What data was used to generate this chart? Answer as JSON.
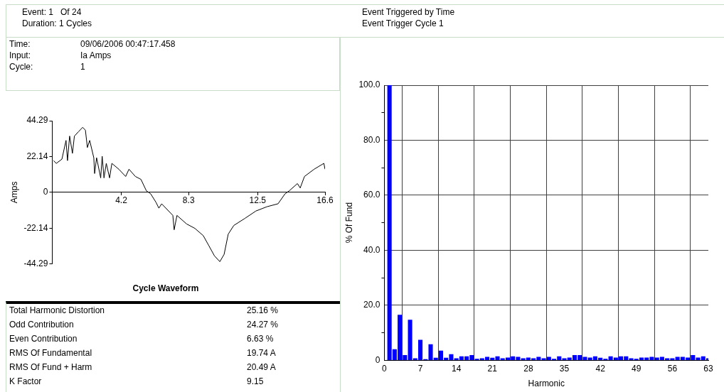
{
  "chart_data": [
    {
      "type": "other",
      "annotations": [
        "Event: 1   Of 24",
        "Duration: 1 Cycles",
        "Event Triggered by Time",
        "Event Trigger Cycle 1",
        "Time:",
        "09/06/2006 00:47:17.458",
        "Input:",
        "Ia Amps",
        "Cycle:",
        "1"
      ]
    },
    {
      "type": "line",
      "title": "Cycle Waveform",
      "ylabel": "Amps",
      "xlim": [
        0,
        16.6
      ],
      "xticks": [
        4.2,
        8.3,
        12.5,
        16.6
      ],
      "ylim": [
        -44.29,
        44.29
      ],
      "yticks": [
        -44.29,
        -22.14,
        0,
        22.14,
        44.29
      ],
      "grid": false,
      "legend": false,
      "marker": "none",
      "line_style": "solid",
      "series": [
        {
          "color": "#000000",
          "x": [
            0.08,
            0.25,
            0.59,
            0.84,
            0.93,
            1.06,
            1.23,
            1.35,
            1.6,
            1.85,
            2.02,
            2.14,
            2.28,
            2.53,
            2.58,
            2.7,
            2.95,
            3.04,
            3.15,
            3.29,
            3.49,
            3.63,
            4.05,
            4.47,
            4.67,
            5.06,
            5.4,
            5.73,
            5.99,
            6.32,
            6.49,
            6.66,
            7.34,
            7.42,
            7.59,
            8.18,
            8.68,
            9.19,
            9.53,
            9.87,
            10.2,
            10.46,
            10.71,
            11.05,
            11.73,
            12.39,
            13.07,
            13.74,
            14.17,
            14.42,
            14.92,
            15.09,
            15.35,
            15.94,
            16.53,
            16.6
          ],
          "values": [
            19.6,
            17.9,
            20.5,
            32.1,
            19.6,
            34.8,
            24.1,
            34.8,
            37.5,
            40.2,
            38.4,
            27.7,
            32.1,
            21.4,
            11.6,
            21.4,
            8.9,
            22.3,
            8.9,
            17.9,
            8.9,
            17.9,
            14.3,
            9.8,
            14.3,
            9.8,
            8,
            0.9,
            -0.9,
            -6.3,
            -9.8,
            -7.1,
            -14.3,
            -23.2,
            -14.3,
            -19.6,
            -22.3,
            -26.8,
            -33,
            -39.3,
            -42.9,
            -38.4,
            -25.9,
            -20.5,
            -16.1,
            -11.6,
            -8.9,
            -7.1,
            -0.9,
            0.9,
            5.4,
            2.7,
            9.8,
            14.3,
            17.9,
            14.3
          ]
        }
      ]
    },
    {
      "type": "bar",
      "xlabel": "Harmonic",
      "ylabel": "% Of Fund",
      "xlim": [
        0,
        63
      ],
      "xticks": [
        0,
        7,
        14,
        21,
        28,
        35,
        42,
        49,
        56,
        63
      ],
      "ylim": [
        0,
        100
      ],
      "yticks": [
        0,
        {
          "value": 10,
          "label": null
        },
        {
          "value": 20,
          "label": "20.0"
        },
        {
          "value": 30,
          "label": null
        },
        {
          "value": 40,
          "label": "40.0"
        },
        {
          "value": 50,
          "label": null
        },
        {
          "value": 60,
          "label": "60.0"
        },
        {
          "value": 70,
          "label": null
        },
        {
          "value": 80,
          "label": "80.0"
        },
        {
          "value": 90,
          "label": null
        },
        {
          "value": 100,
          "label": "100.0"
        }
      ],
      "grid": true,
      "legend": false,
      "x": [
        1,
        2,
        3,
        4,
        5,
        6,
        7,
        8,
        9,
        10,
        11,
        12,
        13,
        14,
        15,
        16,
        17,
        18,
        19,
        20,
        21,
        22,
        23,
        24,
        25,
        26,
        27,
        28,
        29,
        30,
        31,
        32,
        33,
        34,
        35,
        36,
        37,
        38,
        39,
        40,
        41,
        42,
        43,
        44,
        45,
        46,
        47,
        48,
        49,
        50,
        51,
        52,
        53,
        54,
        55,
        56,
        57,
        58,
        59,
        60,
        61,
        62,
        63
      ],
      "series": [
        {
          "color": "#0000ff",
          "values": [
            100,
            3.9,
            16.4,
            1.8,
            14.6,
            0.6,
            7.3,
            0.3,
            5.7,
            0.8,
            3.4,
            0.8,
            2.1,
            0.6,
            1.3,
            1.3,
            1.8,
            0.4,
            0.6,
            1.1,
            0.8,
            1.3,
            0.6,
            0.9,
            1.3,
            1.1,
            0.6,
            0.9,
            0.6,
            1.1,
            0.6,
            1.1,
            0.4,
            1.3,
            0.6,
            0.9,
            1.8,
            1.8,
            1.1,
            0.9,
            1.3,
            0.8,
            0.4,
            1.3,
            0.9,
            1.3,
            1.3,
            0.6,
            0.4,
            0.9,
            0.9,
            1.1,
            0.9,
            1.1,
            0.6,
            0.6,
            1.1,
            1.1,
            0.9,
            1.8,
            0.9,
            1.3,
            0.6
          ]
        }
      ]
    },
    {
      "type": "other",
      "categories": [
        "Total Harmonic Distortion",
        "Odd Contribution",
        "Even Contribution",
        "RMS Of Fundamental",
        "RMS Of Fund + Harm",
        "K Factor"
      ],
      "values": [
        25.16,
        24.27,
        6.63,
        19.74,
        20.49,
        9.15
      ],
      "value_labels": [
        "25.16 %",
        "24.27 %",
        "6.63 %",
        "19.74 A",
        "20.49 A",
        "9.15"
      ]
    }
  ]
}
